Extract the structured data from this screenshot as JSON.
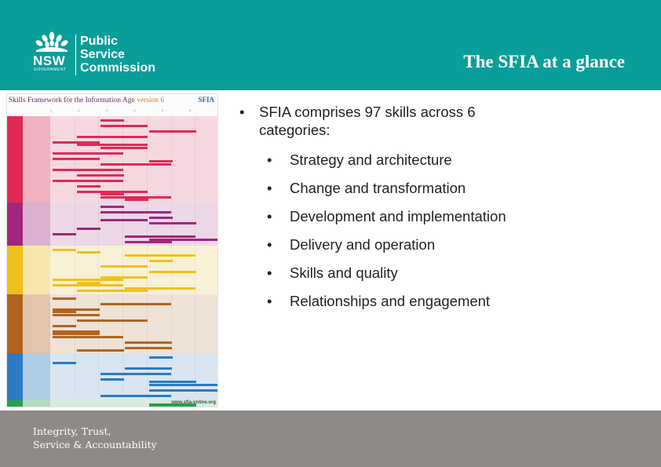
{
  "header": {
    "logo": {
      "wordmark": "NSW",
      "sub": "GOVERNMENT",
      "org_lines": [
        "Public",
        "Service",
        "Commission"
      ]
    },
    "title": "The SFIA at a glance"
  },
  "poster": {
    "title_main": "Skills Framework for the Information Age",
    "title_version": "version 6",
    "brand": "SFIA",
    "levels": [
      "1",
      "2",
      "3",
      "4",
      "5",
      "6",
      "7"
    ],
    "url": "www.sfia-online.org",
    "category_colors": [
      "#e02a56",
      "#a0277d",
      "#f0c01c",
      "#b2641e",
      "#2a7ac4",
      "#22a348"
    ]
  },
  "content": {
    "intro": "SFIA comprises 97 skills across 6 categories:",
    "categories": [
      "Strategy and architecture",
      "Change and transformation",
      "Development and implementation",
      "Delivery and operation",
      "Skills and quality",
      "Relationships and engagement"
    ],
    "bullet_char": "•"
  },
  "footer": {
    "tagline_lines": [
      "Integrity, Trust,",
      "Service & Accountability"
    ]
  }
}
